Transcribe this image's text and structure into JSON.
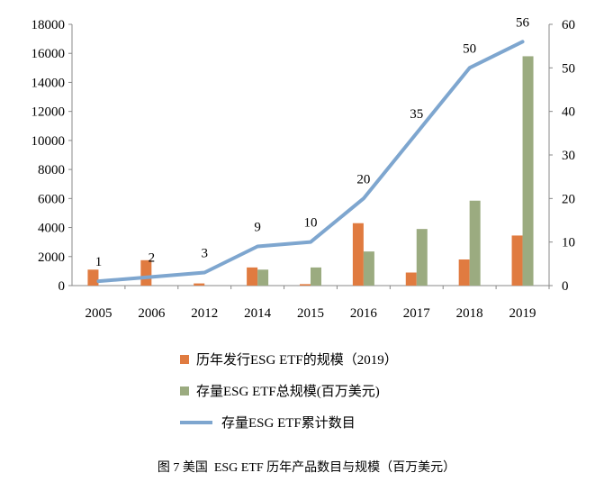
{
  "chart_data": {
    "type": "bar+line",
    "categories": [
      "2005",
      "2006",
      "2012",
      "2014",
      "2015",
      "2016",
      "2017",
      "2018",
      "2019"
    ],
    "series": [
      {
        "name": "历年发行ESG ETF的规模（2019）",
        "type": "bar",
        "axis": "left",
        "color": "#E07B40",
        "values": [
          1100,
          1750,
          150,
          1250,
          100,
          4300,
          900,
          1800,
          3450
        ]
      },
      {
        "name": "存量ESG ETF总规模(百万美元)",
        "type": "bar",
        "axis": "left",
        "color": "#9BAB80",
        "values": [
          0,
          0,
          0,
          1100,
          1250,
          2350,
          3900,
          5850,
          15800
        ]
      },
      {
        "name": "存量ESG ETF累计数目",
        "type": "line",
        "axis": "right",
        "color": "#7EA6CF",
        "values": [
          1,
          2,
          3,
          9,
          10,
          20,
          35,
          50,
          56
        ]
      }
    ],
    "y_left": {
      "min": 0,
      "max": 18000,
      "ticks": [
        "0",
        "2000",
        "4000",
        "6000",
        "8000",
        "10000",
        "12000",
        "14000",
        "16000",
        "18000"
      ]
    },
    "y_right": {
      "min": 0,
      "max": 60,
      "ticks": [
        "0",
        "10",
        "20",
        "30",
        "40",
        "50",
        "60"
      ]
    },
    "line_labels": [
      "1",
      "2",
      "3",
      "9",
      "10",
      "20",
      "35",
      "50",
      "56"
    ],
    "grid": false,
    "legend_position": "bottom"
  },
  "legend": [
    {
      "label": "历年发行ESG ETF的规模（2019）",
      "color": "#E07B40",
      "kind": "bar"
    },
    {
      "label": "存量ESG ETF总规模(百万美元)",
      "color": "#9BAB80",
      "kind": "bar"
    },
    {
      "label": "存量ESG ETF累计数目",
      "color": "#7EA6CF",
      "kind": "line"
    }
  ],
  "caption": "图 7 美国  ESG ETF 历年产品数目与规模（百万美元）"
}
